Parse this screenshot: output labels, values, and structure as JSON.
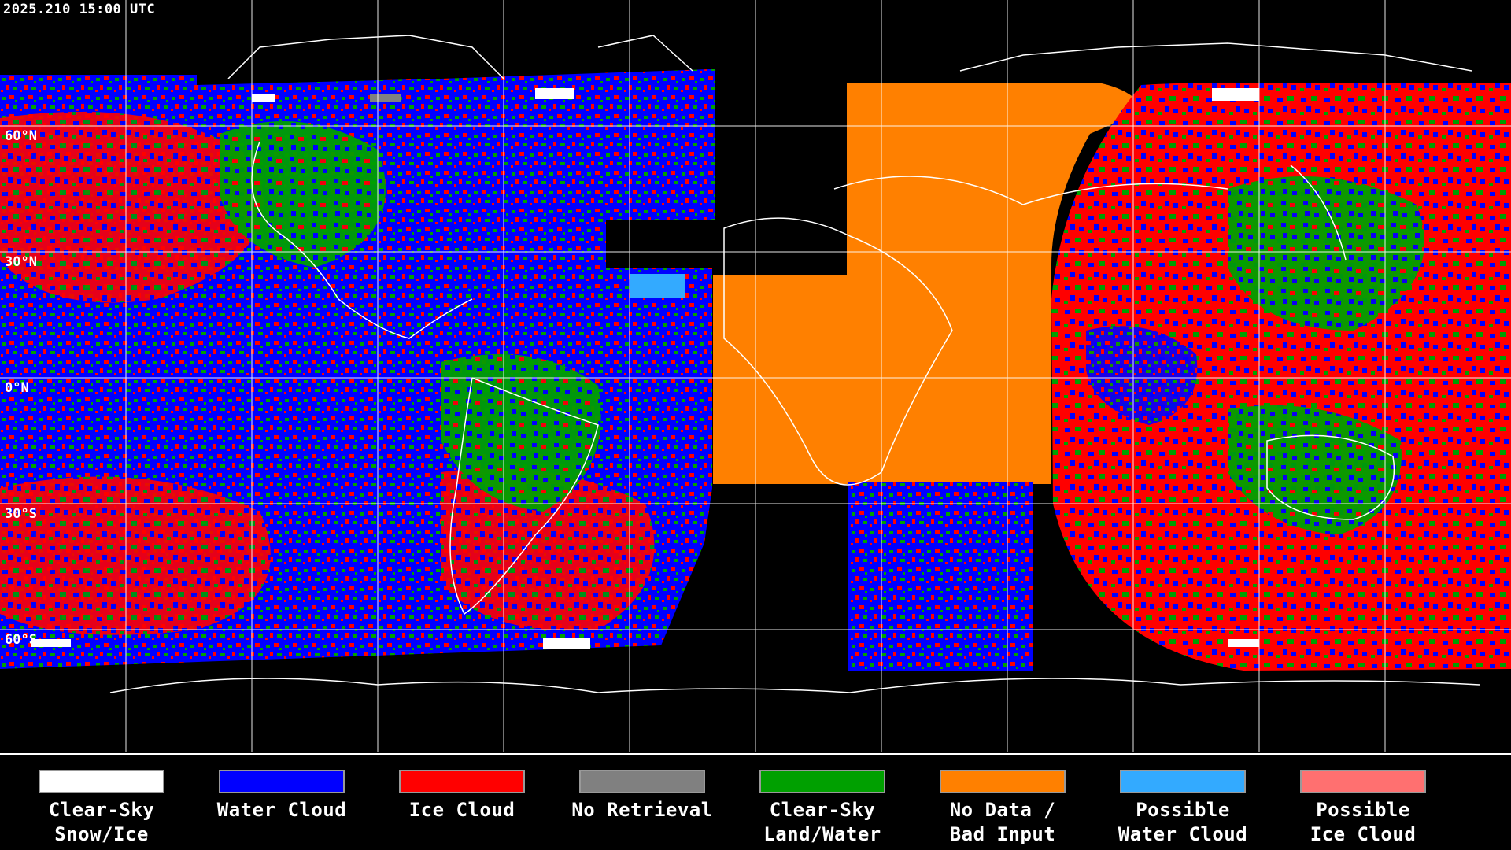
{
  "timestamp": "2025.210 15:00 UTC",
  "lat_labels": [
    "60°N",
    "30°N",
    "0°N",
    "30°S",
    "60°S"
  ],
  "colors": {
    "clear_snow": "#ffffff",
    "water_cloud": "#0000ff",
    "ice_cloud": "#ff0000",
    "no_retrieval": "#808080",
    "clear_land": "#00a000",
    "no_data": "#ff8000",
    "possible_water": "#33aaff",
    "possible_ice": "#ff7070"
  },
  "legend": [
    {
      "label": "Clear-Sky\nSnow/Ice",
      "color": "#ffffff"
    },
    {
      "label": "Water Cloud",
      "color": "#0000ff"
    },
    {
      "label": "Ice Cloud",
      "color": "#ff0000"
    },
    {
      "label": "No Retrieval",
      "color": "#808080"
    },
    {
      "label": "Clear-Sky\nLand/Water",
      "color": "#00a000"
    },
    {
      "label": "No Data /\nBad Input",
      "color": "#ff8000"
    },
    {
      "label": "Possible\nWater Cloud",
      "color": "#33aaff"
    },
    {
      "label": "Possible\nIce Cloud",
      "color": "#ff7070"
    }
  ]
}
